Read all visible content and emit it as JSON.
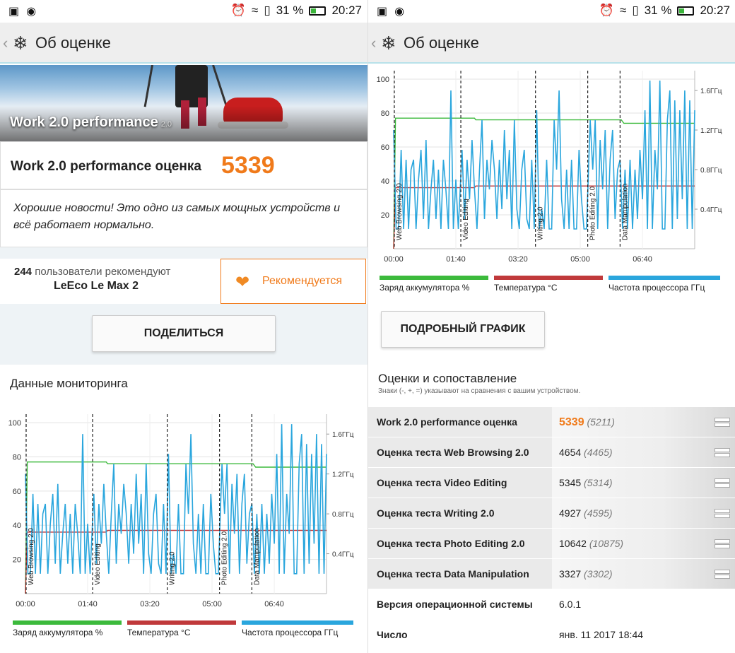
{
  "status_bar": {
    "battery_text": "31 %",
    "time": "20:27"
  },
  "app_bar": {
    "title": "Об оценке"
  },
  "hero": {
    "title": "Work 2.0 performance",
    "version": "2.0"
  },
  "score": {
    "label": "Work 2.0 performance оценка",
    "value": "5339"
  },
  "news": {
    "text": "Хорошие новости! Это одно из самых мощных устройств и всё работает нормально."
  },
  "recommend": {
    "count": "244",
    "count_suffix": "пользователи рекомендуют",
    "device": "LeEco Le Max 2",
    "button_label": "Рекомендуется"
  },
  "share_button": "ПОДЕЛИТЬСЯ",
  "monitoring_title": "Данные мониторинга",
  "detail_button": "ПОДРОБНЫЙ ГРАФИК",
  "compare": {
    "title": "Оценки и сопоставление",
    "note": "Знаки (-, +, =) указывают на сравнения с вашим устройством."
  },
  "table": [
    {
      "label": "Work 2.0 performance оценка",
      "value": "5339",
      "ref": "(5211)",
      "highlight": true,
      "eq": true
    },
    {
      "label": "Оценка теста Web Browsing 2.0",
      "value": "4654",
      "ref": "(4465)",
      "eq": true
    },
    {
      "label": "Оценка теста Video Editing",
      "value": "5345",
      "ref": "(5314)",
      "eq": true
    },
    {
      "label": "Оценка теста Writing 2.0",
      "value": "4927",
      "ref": "(4595)",
      "eq": true
    },
    {
      "label": "Оценка теста Photo Editing 2.0",
      "value": "10642",
      "ref": "(10875)",
      "eq": true
    },
    {
      "label": "Оценка теста Data Manipulation",
      "value": "3327",
      "ref": "(3302)",
      "eq": true
    },
    {
      "label": "Версия операционной системы",
      "value": "6.0.1",
      "ref": "",
      "plain": true
    },
    {
      "label": "Число",
      "value": "янв. 11 2017 18:44",
      "ref": "",
      "plain": true
    }
  ],
  "chart_data": {
    "type": "line",
    "x_ticks": [
      "00:00",
      "01:40",
      "03:20",
      "05:00",
      "06:40"
    ],
    "x_tick_seconds": [
      0,
      100,
      200,
      300,
      400
    ],
    "xlim": [
      0,
      484
    ],
    "ylim": [
      0,
      105
    ],
    "y_ticks": [
      20,
      40,
      60,
      80,
      100
    ],
    "y2_ticks": [
      "0.4ГГц",
      "0.8ГГц",
      "1.2ГГц",
      "1.6ГГц"
    ],
    "y2_tick_values": [
      0.4,
      0.8,
      1.2,
      1.6
    ],
    "y2lim": [
      0,
      1.8
    ],
    "grid": true,
    "legend_position": "bottom",
    "phases": [
      {
        "name": "Web Browsing 2.0",
        "start": 0
      },
      {
        "name": "Video Editing",
        "start": 108
      },
      {
        "name": "Writing 2.0",
        "start": 228
      },
      {
        "name": "Photo Editing 2.0",
        "start": 312
      },
      {
        "name": "Data Manipulation",
        "start": 364
      }
    ],
    "series": [
      {
        "name": "Заряд аккумулятора %",
        "color": "#3cba3c",
        "axis": "left",
        "points": [
          [
            0,
            0
          ],
          [
            3,
            77
          ],
          [
            130,
            77
          ],
          [
            132,
            76
          ],
          [
            250,
            76
          ],
          [
            252,
            76
          ],
          [
            366,
            76
          ],
          [
            370,
            74
          ],
          [
            484,
            74
          ]
        ]
      },
      {
        "name": "Температура °C",
        "color": "#c0393b",
        "axis": "left",
        "points": [
          [
            0,
            0
          ],
          [
            3,
            36
          ],
          [
            130,
            36
          ],
          [
            132,
            37
          ],
          [
            484,
            37
          ]
        ]
      },
      {
        "name": "Частота процессора ГГц",
        "color": "#2aa6dd",
        "axis": "right",
        "points": [
          [
            0,
            1.2
          ],
          [
            4,
            0.2
          ],
          [
            8,
            0.2
          ],
          [
            12,
            1.0
          ],
          [
            16,
            0.2
          ],
          [
            20,
            0.9
          ],
          [
            24,
            0.2
          ],
          [
            28,
            0.8
          ],
          [
            32,
            0.9
          ],
          [
            36,
            0.2
          ],
          [
            40,
            0.7
          ],
          [
            44,
            1.0
          ],
          [
            48,
            0.3
          ],
          [
            52,
            1.1
          ],
          [
            56,
            0.2
          ],
          [
            60,
            0.6
          ],
          [
            64,
            0.9
          ],
          [
            68,
            0.3
          ],
          [
            72,
            0.8
          ],
          [
            76,
            0.2
          ],
          [
            80,
            0.9
          ],
          [
            84,
            0.6
          ],
          [
            88,
            0.2
          ],
          [
            92,
            1.6
          ],
          [
            96,
            0.2
          ],
          [
            100,
            0.7
          ],
          [
            104,
            0.2
          ],
          [
            110,
            1.0
          ],
          [
            114,
            0.3
          ],
          [
            118,
            0.9
          ],
          [
            122,
            0.5
          ],
          [
            126,
            1.1
          ],
          [
            130,
            0.6
          ],
          [
            134,
            0.2
          ],
          [
            138,
            0.8
          ],
          [
            142,
            1.3
          ],
          [
            146,
            0.3
          ],
          [
            150,
            0.9
          ],
          [
            154,
            0.6
          ],
          [
            158,
            1.1
          ],
          [
            162,
            0.8
          ],
          [
            166,
            0.3
          ],
          [
            170,
            0.9
          ],
          [
            174,
            0.4
          ],
          [
            178,
            1.2
          ],
          [
            182,
            0.5
          ],
          [
            186,
            1.0
          ],
          [
            190,
            0.2
          ],
          [
            194,
            1.3
          ],
          [
            198,
            0.4
          ],
          [
            202,
            0.2
          ],
          [
            206,
            0.8
          ],
          [
            210,
            1.0
          ],
          [
            214,
            0.3
          ],
          [
            218,
            0.2
          ],
          [
            222,
            0.9
          ],
          [
            226,
            0.2
          ],
          [
            230,
            1.4
          ],
          [
            234,
            0.2
          ],
          [
            238,
            0.4
          ],
          [
            242,
            0.2
          ],
          [
            246,
            0.9
          ],
          [
            250,
            0.2
          ],
          [
            254,
            0.2
          ],
          [
            258,
            1.3
          ],
          [
            262,
            0.8
          ],
          [
            266,
            1.6
          ],
          [
            270,
            0.5
          ],
          [
            274,
            0.2
          ],
          [
            278,
            0.8
          ],
          [
            282,
            0.2
          ],
          [
            286,
            0.9
          ],
          [
            290,
            0.2
          ],
          [
            294,
            0.2
          ],
          [
            298,
            1.0
          ],
          [
            302,
            0.5
          ],
          [
            306,
            0.2
          ],
          [
            310,
            0.2
          ],
          [
            316,
            1.3
          ],
          [
            320,
            0.8
          ],
          [
            324,
            1.3
          ],
          [
            328,
            0.2
          ],
          [
            332,
            1.1
          ],
          [
            336,
            0.6
          ],
          [
            340,
            1.2
          ],
          [
            344,
            0.2
          ],
          [
            348,
            0.9
          ],
          [
            352,
            1.2
          ],
          [
            356,
            0.3
          ],
          [
            360,
            0.8
          ],
          [
            364,
            0.9
          ],
          [
            368,
            0.2
          ],
          [
            372,
            0.8
          ],
          [
            376,
            0.2
          ],
          [
            380,
            0.9
          ],
          [
            384,
            0.2
          ],
          [
            388,
            0.8
          ],
          [
            392,
            0.3
          ],
          [
            396,
            1.0
          ],
          [
            400,
            0.5
          ],
          [
            404,
            1.4
          ],
          [
            408,
            0.2
          ],
          [
            412,
            1.7
          ],
          [
            416,
            0.2
          ],
          [
            420,
            1.0
          ],
          [
            424,
            0.6
          ],
          [
            428,
            1.7
          ],
          [
            432,
            0.2
          ],
          [
            436,
            0.2
          ],
          [
            440,
            1.3
          ],
          [
            444,
            1.6
          ],
          [
            448,
            0.2
          ],
          [
            452,
            1.5
          ],
          [
            456,
            0.3
          ],
          [
            460,
            1.4
          ],
          [
            464,
            0.5
          ],
          [
            468,
            1.6
          ],
          [
            472,
            0.2
          ],
          [
            476,
            1.5
          ],
          [
            480,
            0.2
          ],
          [
            484,
            1.4
          ]
        ]
      }
    ]
  }
}
